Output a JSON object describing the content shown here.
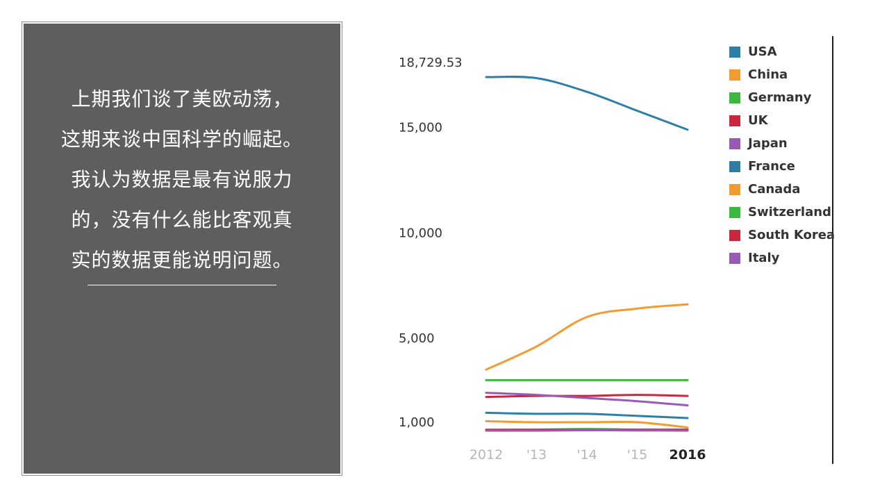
{
  "panel": {
    "lines": [
      "上期我们谈了美欧动荡，",
      "这期来谈中国科学的崛起。",
      "我认为数据是最有说服力",
      "的，没有什么能比客观真",
      "实的数据更能说明问题。"
    ],
    "background": "#5e5e5c"
  },
  "chart_data": {
    "type": "line",
    "title": "",
    "xlabel": "",
    "ylabel": "",
    "x": [
      2012,
      2013,
      2014,
      2015,
      2016
    ],
    "x_tick_labels": [
      "2012",
      "'13",
      "'14",
      "'15",
      "2016"
    ],
    "y_tick_values": [
      18729.53,
      15000,
      10000,
      5000,
      1000
    ],
    "y_tick_labels": [
      "18,729.53",
      "15,000",
      "10,000",
      "5,000",
      "1,000"
    ],
    "ylim": [
      500,
      18729.53
    ],
    "grid": false,
    "legend_position": "right",
    "series": [
      {
        "name": "USA",
        "color": "#2e7fa8",
        "values": [
          17400,
          17350,
          16700,
          15800,
          14900
        ]
      },
      {
        "name": "China",
        "color": "#f29b30",
        "values": [
          3500,
          4600,
          6000,
          6400,
          6600
        ]
      },
      {
        "name": "Germany",
        "color": "#3cb83c",
        "values": [
          3000,
          3000,
          3000,
          3000,
          3000
        ]
      },
      {
        "name": "UK",
        "color": "#c9273f",
        "values": [
          2200,
          2250,
          2250,
          2300,
          2250
        ]
      },
      {
        "name": "Japan",
        "color": "#9b59b6",
        "values": [
          2400,
          2300,
          2150,
          2000,
          1800
        ]
      },
      {
        "name": "France",
        "color": "#2e7fa8",
        "values": [
          1450,
          1400,
          1400,
          1300,
          1200
        ]
      },
      {
        "name": "Canada",
        "color": "#f29b30",
        "values": [
          1050,
          1000,
          1000,
          1000,
          750
        ]
      },
      {
        "name": "Switzerland",
        "color": "#3cb83c",
        "values": [
          650,
          650,
          680,
          650,
          650
        ]
      },
      {
        "name": "South Korea",
        "color": "#c9273f",
        "values": [
          630,
          640,
          640,
          640,
          640
        ]
      },
      {
        "name": "Italy",
        "color": "#9b59b6",
        "values": [
          600,
          600,
          620,
          610,
          600
        ]
      }
    ]
  }
}
